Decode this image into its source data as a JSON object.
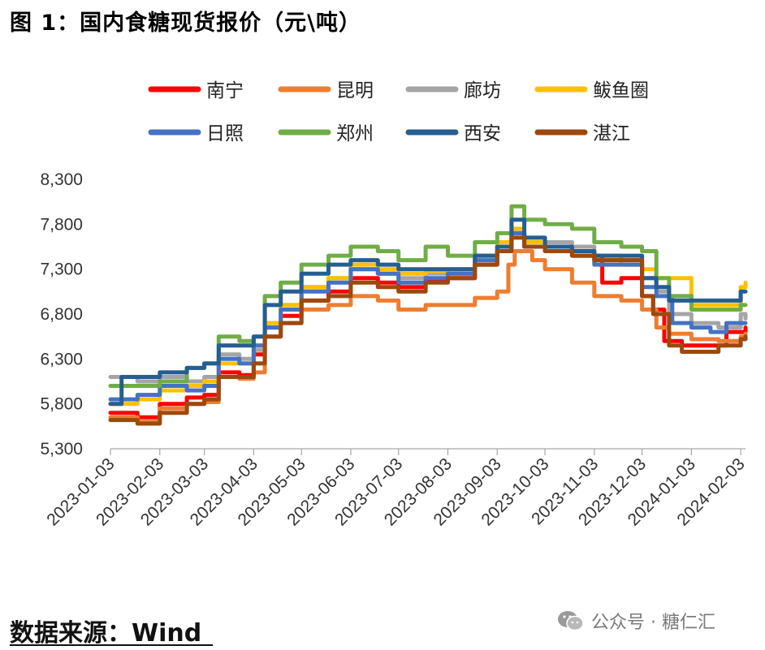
{
  "title": "图 1：国内食糖现货报价（元\\吨）",
  "source_label": "数据来源：Wind",
  "watermark": {
    "text": "公众号 · 糖仁汇",
    "icon": "wechat-icon"
  },
  "colors": {
    "南宁": "#ff0000",
    "昆明": "#ed7d31",
    "廊坊": "#a5a5a5",
    "鲅鱼圈": "#ffc000",
    "日照": "#4472c4",
    "郑州": "#70ad47",
    "西安": "#255e91",
    "湛江": "#9e480e"
  },
  "chart_data": {
    "type": "line",
    "title": "",
    "xlabel": "",
    "ylabel": "",
    "ylim": [
      5300,
      8300
    ],
    "yticks": [
      "5,300",
      "5,800",
      "6,300",
      "6,800",
      "7,300",
      "7,800",
      "8,300"
    ],
    "x_ticks": [
      "2023-01-03",
      "2023-02-03",
      "2023-03-03",
      "2023-04-03",
      "2023-05-03",
      "2023-06-03",
      "2023-07-03",
      "2023-08-03",
      "2023-09-03",
      "2023-10-03",
      "2023-11-03",
      "2023-12-03",
      "2024-01-03",
      "2024-02-03"
    ],
    "grid": false,
    "legend": "top",
    "series": [
      {
        "name": "南宁",
        "color": "#ff0000",
        "points": [
          [
            "2023-01-03",
            5700
          ],
          [
            "2023-01-20",
            5650
          ],
          [
            "2023-02-03",
            5800
          ],
          [
            "2023-02-20",
            5870
          ],
          [
            "2023-03-03",
            5900
          ],
          [
            "2023-03-12",
            6150
          ],
          [
            "2023-03-25",
            6120
          ],
          [
            "2023-04-03",
            6350
          ],
          [
            "2023-04-10",
            6650
          ],
          [
            "2023-04-20",
            6780
          ],
          [
            "2023-05-03",
            6950
          ],
          [
            "2023-05-20",
            7050
          ],
          [
            "2023-06-03",
            7200
          ],
          [
            "2023-06-20",
            7150
          ],
          [
            "2023-07-03",
            7100
          ],
          [
            "2023-07-20",
            7180
          ],
          [
            "2023-08-03",
            7200
          ],
          [
            "2023-08-20",
            7350
          ],
          [
            "2023-09-03",
            7500
          ],
          [
            "2023-09-12",
            7700
          ],
          [
            "2023-09-20",
            7550
          ],
          [
            "2023-10-03",
            7550
          ],
          [
            "2023-10-20",
            7500
          ],
          [
            "2023-11-03",
            7450
          ],
          [
            "2023-11-08",
            7150
          ],
          [
            "2023-11-20",
            7200
          ],
          [
            "2023-12-03",
            7000
          ],
          [
            "2023-12-10",
            6850
          ],
          [
            "2023-12-17",
            6500
          ],
          [
            "2023-12-28",
            6450
          ],
          [
            "2024-01-03",
            6450
          ],
          [
            "2024-01-15",
            6450
          ],
          [
            "2024-01-25",
            6600
          ],
          [
            "2024-02-03",
            6600
          ],
          [
            "2024-02-06",
            6650
          ]
        ]
      },
      {
        "name": "昆明",
        "color": "#ed7d31",
        "points": [
          [
            "2023-01-03",
            5650
          ],
          [
            "2023-01-20",
            5600
          ],
          [
            "2023-02-03",
            5750
          ],
          [
            "2023-02-20",
            5800
          ],
          [
            "2023-03-03",
            5820
          ],
          [
            "2023-03-12",
            6100
          ],
          [
            "2023-03-25",
            6080
          ],
          [
            "2023-04-03",
            6150
          ],
          [
            "2023-04-10",
            6550
          ],
          [
            "2023-04-20",
            6700
          ],
          [
            "2023-05-03",
            6850
          ],
          [
            "2023-05-20",
            6900
          ],
          [
            "2023-06-03",
            7000
          ],
          [
            "2023-06-20",
            6950
          ],
          [
            "2023-07-03",
            6850
          ],
          [
            "2023-07-20",
            6900
          ],
          [
            "2023-08-03",
            6900
          ],
          [
            "2023-08-20",
            6980
          ],
          [
            "2023-09-03",
            7050
          ],
          [
            "2023-09-10",
            7350
          ],
          [
            "2023-09-14",
            7500
          ],
          [
            "2023-09-25",
            7400
          ],
          [
            "2023-10-03",
            7300
          ],
          [
            "2023-10-20",
            7150
          ],
          [
            "2023-11-03",
            7000
          ],
          [
            "2023-11-20",
            6950
          ],
          [
            "2023-12-03",
            6850
          ],
          [
            "2023-12-12",
            6650
          ],
          [
            "2023-12-20",
            6580
          ],
          [
            "2024-01-03",
            6520
          ],
          [
            "2024-01-20",
            6500
          ],
          [
            "2024-02-03",
            6550
          ],
          [
            "2024-02-06",
            6580
          ]
        ]
      },
      {
        "name": "廊坊",
        "color": "#a5a5a5",
        "points": [
          [
            "2023-01-03",
            6100
          ],
          [
            "2023-01-20",
            6050
          ],
          [
            "2023-02-03",
            6100
          ],
          [
            "2023-02-20",
            6050
          ],
          [
            "2023-03-03",
            6100
          ],
          [
            "2023-03-12",
            6350
          ],
          [
            "2023-03-25",
            6300
          ],
          [
            "2023-04-03",
            6400
          ],
          [
            "2023-04-10",
            6700
          ],
          [
            "2023-04-20",
            6900
          ],
          [
            "2023-05-03",
            7100
          ],
          [
            "2023-05-20",
            7200
          ],
          [
            "2023-06-03",
            7300
          ],
          [
            "2023-06-20",
            7250
          ],
          [
            "2023-07-03",
            7200
          ],
          [
            "2023-07-20",
            7250
          ],
          [
            "2023-08-03",
            7250
          ],
          [
            "2023-08-20",
            7450
          ],
          [
            "2023-09-03",
            7550
          ],
          [
            "2023-09-12",
            7700
          ],
          [
            "2023-09-20",
            7600
          ],
          [
            "2023-10-03",
            7600
          ],
          [
            "2023-10-20",
            7550
          ],
          [
            "2023-11-03",
            7450
          ],
          [
            "2023-11-20",
            7400
          ],
          [
            "2023-12-03",
            7200
          ],
          [
            "2023-12-12",
            7050
          ],
          [
            "2023-12-20",
            6800
          ],
          [
            "2024-01-03",
            6700
          ],
          [
            "2024-01-20",
            6650
          ],
          [
            "2024-02-03",
            6800
          ],
          [
            "2024-02-06",
            6750
          ]
        ]
      },
      {
        "name": "鲅鱼圈",
        "color": "#ffc000",
        "points": [
          [
            "2023-01-03",
            5800
          ],
          [
            "2023-01-20",
            5850
          ],
          [
            "2023-02-03",
            5950
          ],
          [
            "2023-02-20",
            6000
          ],
          [
            "2023-03-03",
            6050
          ],
          [
            "2023-03-12",
            6250
          ],
          [
            "2023-03-25",
            6250
          ],
          [
            "2023-04-03",
            6450
          ],
          [
            "2023-04-10",
            6700
          ],
          [
            "2023-04-20",
            6900
          ],
          [
            "2023-05-03",
            7100
          ],
          [
            "2023-05-20",
            7200
          ],
          [
            "2023-06-03",
            7350
          ],
          [
            "2023-06-20",
            7300
          ],
          [
            "2023-07-03",
            7250
          ],
          [
            "2023-07-20",
            7280
          ],
          [
            "2023-08-03",
            7300
          ],
          [
            "2023-08-20",
            7450
          ],
          [
            "2023-09-03",
            7600
          ],
          [
            "2023-09-12",
            7750
          ],
          [
            "2023-09-20",
            7600
          ],
          [
            "2023-10-03",
            7550
          ],
          [
            "2023-10-20",
            7450
          ],
          [
            "2023-11-03",
            7400
          ],
          [
            "2023-11-20",
            7350
          ],
          [
            "2023-12-03",
            7300
          ],
          [
            "2023-12-12",
            7200
          ],
          [
            "2023-12-25",
            7200
          ],
          [
            "2024-01-03",
            6900
          ],
          [
            "2024-01-20",
            6900
          ],
          [
            "2024-02-03",
            7100
          ],
          [
            "2024-02-06",
            7150
          ]
        ]
      },
      {
        "name": "日照",
        "color": "#4472c4",
        "points": [
          [
            "2023-01-03",
            5850
          ],
          [
            "2023-01-20",
            5900
          ],
          [
            "2023-02-03",
            6000
          ],
          [
            "2023-02-20",
            5950
          ],
          [
            "2023-03-03",
            6000
          ],
          [
            "2023-03-12",
            6300
          ],
          [
            "2023-03-25",
            6250
          ],
          [
            "2023-04-03",
            6450
          ],
          [
            "2023-04-10",
            6650
          ],
          [
            "2023-04-20",
            6850
          ],
          [
            "2023-05-03",
            7050
          ],
          [
            "2023-05-20",
            7150
          ],
          [
            "2023-06-03",
            7300
          ],
          [
            "2023-06-20",
            7250
          ],
          [
            "2023-07-03",
            7150
          ],
          [
            "2023-07-20",
            7200
          ],
          [
            "2023-08-03",
            7250
          ],
          [
            "2023-08-20",
            7400
          ],
          [
            "2023-09-03",
            7550
          ],
          [
            "2023-09-12",
            7700
          ],
          [
            "2023-09-20",
            7550
          ],
          [
            "2023-10-03",
            7500
          ],
          [
            "2023-10-20",
            7450
          ],
          [
            "2023-11-03",
            7350
          ],
          [
            "2023-11-20",
            7350
          ],
          [
            "2023-12-03",
            7100
          ],
          [
            "2023-12-12",
            7000
          ],
          [
            "2023-12-22",
            6700
          ],
          [
            "2024-01-03",
            6650
          ],
          [
            "2024-01-15",
            6600
          ],
          [
            "2024-01-25",
            6700
          ],
          [
            "2024-02-06",
            6700
          ]
        ]
      },
      {
        "name": "郑州",
        "color": "#70ad47",
        "points": [
          [
            "2023-01-03",
            6000
          ],
          [
            "2023-01-20",
            6000
          ],
          [
            "2023-02-03",
            6050
          ],
          [
            "2023-02-20",
            6200
          ],
          [
            "2023-03-03",
            6250
          ],
          [
            "2023-03-12",
            6550
          ],
          [
            "2023-03-25",
            6500
          ],
          [
            "2023-04-03",
            6550
          ],
          [
            "2023-04-10",
            7000
          ],
          [
            "2023-04-20",
            7150
          ],
          [
            "2023-05-03",
            7350
          ],
          [
            "2023-05-20",
            7450
          ],
          [
            "2023-06-03",
            7550
          ],
          [
            "2023-06-20",
            7500
          ],
          [
            "2023-07-03",
            7400
          ],
          [
            "2023-07-20",
            7550
          ],
          [
            "2023-08-03",
            7450
          ],
          [
            "2023-08-20",
            7600
          ],
          [
            "2023-09-03",
            7700
          ],
          [
            "2023-09-12",
            8000
          ],
          [
            "2023-09-20",
            7850
          ],
          [
            "2023-10-03",
            7800
          ],
          [
            "2023-10-20",
            7750
          ],
          [
            "2023-11-03",
            7600
          ],
          [
            "2023-11-20",
            7550
          ],
          [
            "2023-12-03",
            7500
          ],
          [
            "2023-12-12",
            7200
          ],
          [
            "2023-12-20",
            7000
          ],
          [
            "2024-01-03",
            6850
          ],
          [
            "2024-01-20",
            6850
          ],
          [
            "2024-02-03",
            6900
          ],
          [
            "2024-02-06",
            6900
          ]
        ]
      },
      {
        "name": "西安",
        "color": "#255e91",
        "points": [
          [
            "2023-01-03",
            5800
          ],
          [
            "2023-01-10",
            6100
          ],
          [
            "2023-02-03",
            6150
          ],
          [
            "2023-02-20",
            6200
          ],
          [
            "2023-03-03",
            6250
          ],
          [
            "2023-03-12",
            6450
          ],
          [
            "2023-03-25",
            6450
          ],
          [
            "2023-04-03",
            6550
          ],
          [
            "2023-04-10",
            6900
          ],
          [
            "2023-04-20",
            7050
          ],
          [
            "2023-05-03",
            7250
          ],
          [
            "2023-05-20",
            7350
          ],
          [
            "2023-06-03",
            7400
          ],
          [
            "2023-06-20",
            7350
          ],
          [
            "2023-07-03",
            7300
          ],
          [
            "2023-07-20",
            7300
          ],
          [
            "2023-08-03",
            7300
          ],
          [
            "2023-08-20",
            7450
          ],
          [
            "2023-09-03",
            7550
          ],
          [
            "2023-09-12",
            7850
          ],
          [
            "2023-09-20",
            7650
          ],
          [
            "2023-10-03",
            7550
          ],
          [
            "2023-10-20",
            7500
          ],
          [
            "2023-11-03",
            7450
          ],
          [
            "2023-11-20",
            7450
          ],
          [
            "2023-12-03",
            7200
          ],
          [
            "2023-12-12",
            7100
          ],
          [
            "2023-12-20",
            6950
          ],
          [
            "2024-01-03",
            6950
          ],
          [
            "2024-01-20",
            6950
          ],
          [
            "2024-02-03",
            7050
          ],
          [
            "2024-02-06",
            7050
          ]
        ]
      },
      {
        "name": "湛江",
        "color": "#9e480e",
        "points": [
          [
            "2023-01-03",
            5620
          ],
          [
            "2023-01-20",
            5580
          ],
          [
            "2023-02-03",
            5700
          ],
          [
            "2023-02-20",
            5800
          ],
          [
            "2023-03-03",
            5850
          ],
          [
            "2023-03-12",
            6100
          ],
          [
            "2023-03-25",
            6100
          ],
          [
            "2023-04-03",
            6250
          ],
          [
            "2023-04-10",
            6550
          ],
          [
            "2023-04-20",
            6700
          ],
          [
            "2023-05-03",
            6950
          ],
          [
            "2023-05-20",
            7000
          ],
          [
            "2023-06-03",
            7150
          ],
          [
            "2023-06-20",
            7100
          ],
          [
            "2023-07-03",
            7050
          ],
          [
            "2023-07-20",
            7150
          ],
          [
            "2023-08-03",
            7200
          ],
          [
            "2023-08-20",
            7350
          ],
          [
            "2023-09-03",
            7500
          ],
          [
            "2023-09-12",
            7650
          ],
          [
            "2023-09-20",
            7550
          ],
          [
            "2023-10-03",
            7500
          ],
          [
            "2023-10-20",
            7450
          ],
          [
            "2023-11-03",
            7400
          ],
          [
            "2023-11-20",
            7400
          ],
          [
            "2023-12-03",
            7000
          ],
          [
            "2023-12-10",
            6800
          ],
          [
            "2023-12-20",
            6450
          ],
          [
            "2023-12-28",
            6380
          ],
          [
            "2024-01-03",
            6380
          ],
          [
            "2024-01-20",
            6450
          ],
          [
            "2024-02-03",
            6520
          ],
          [
            "2024-02-06",
            6550
          ]
        ]
      }
    ]
  }
}
